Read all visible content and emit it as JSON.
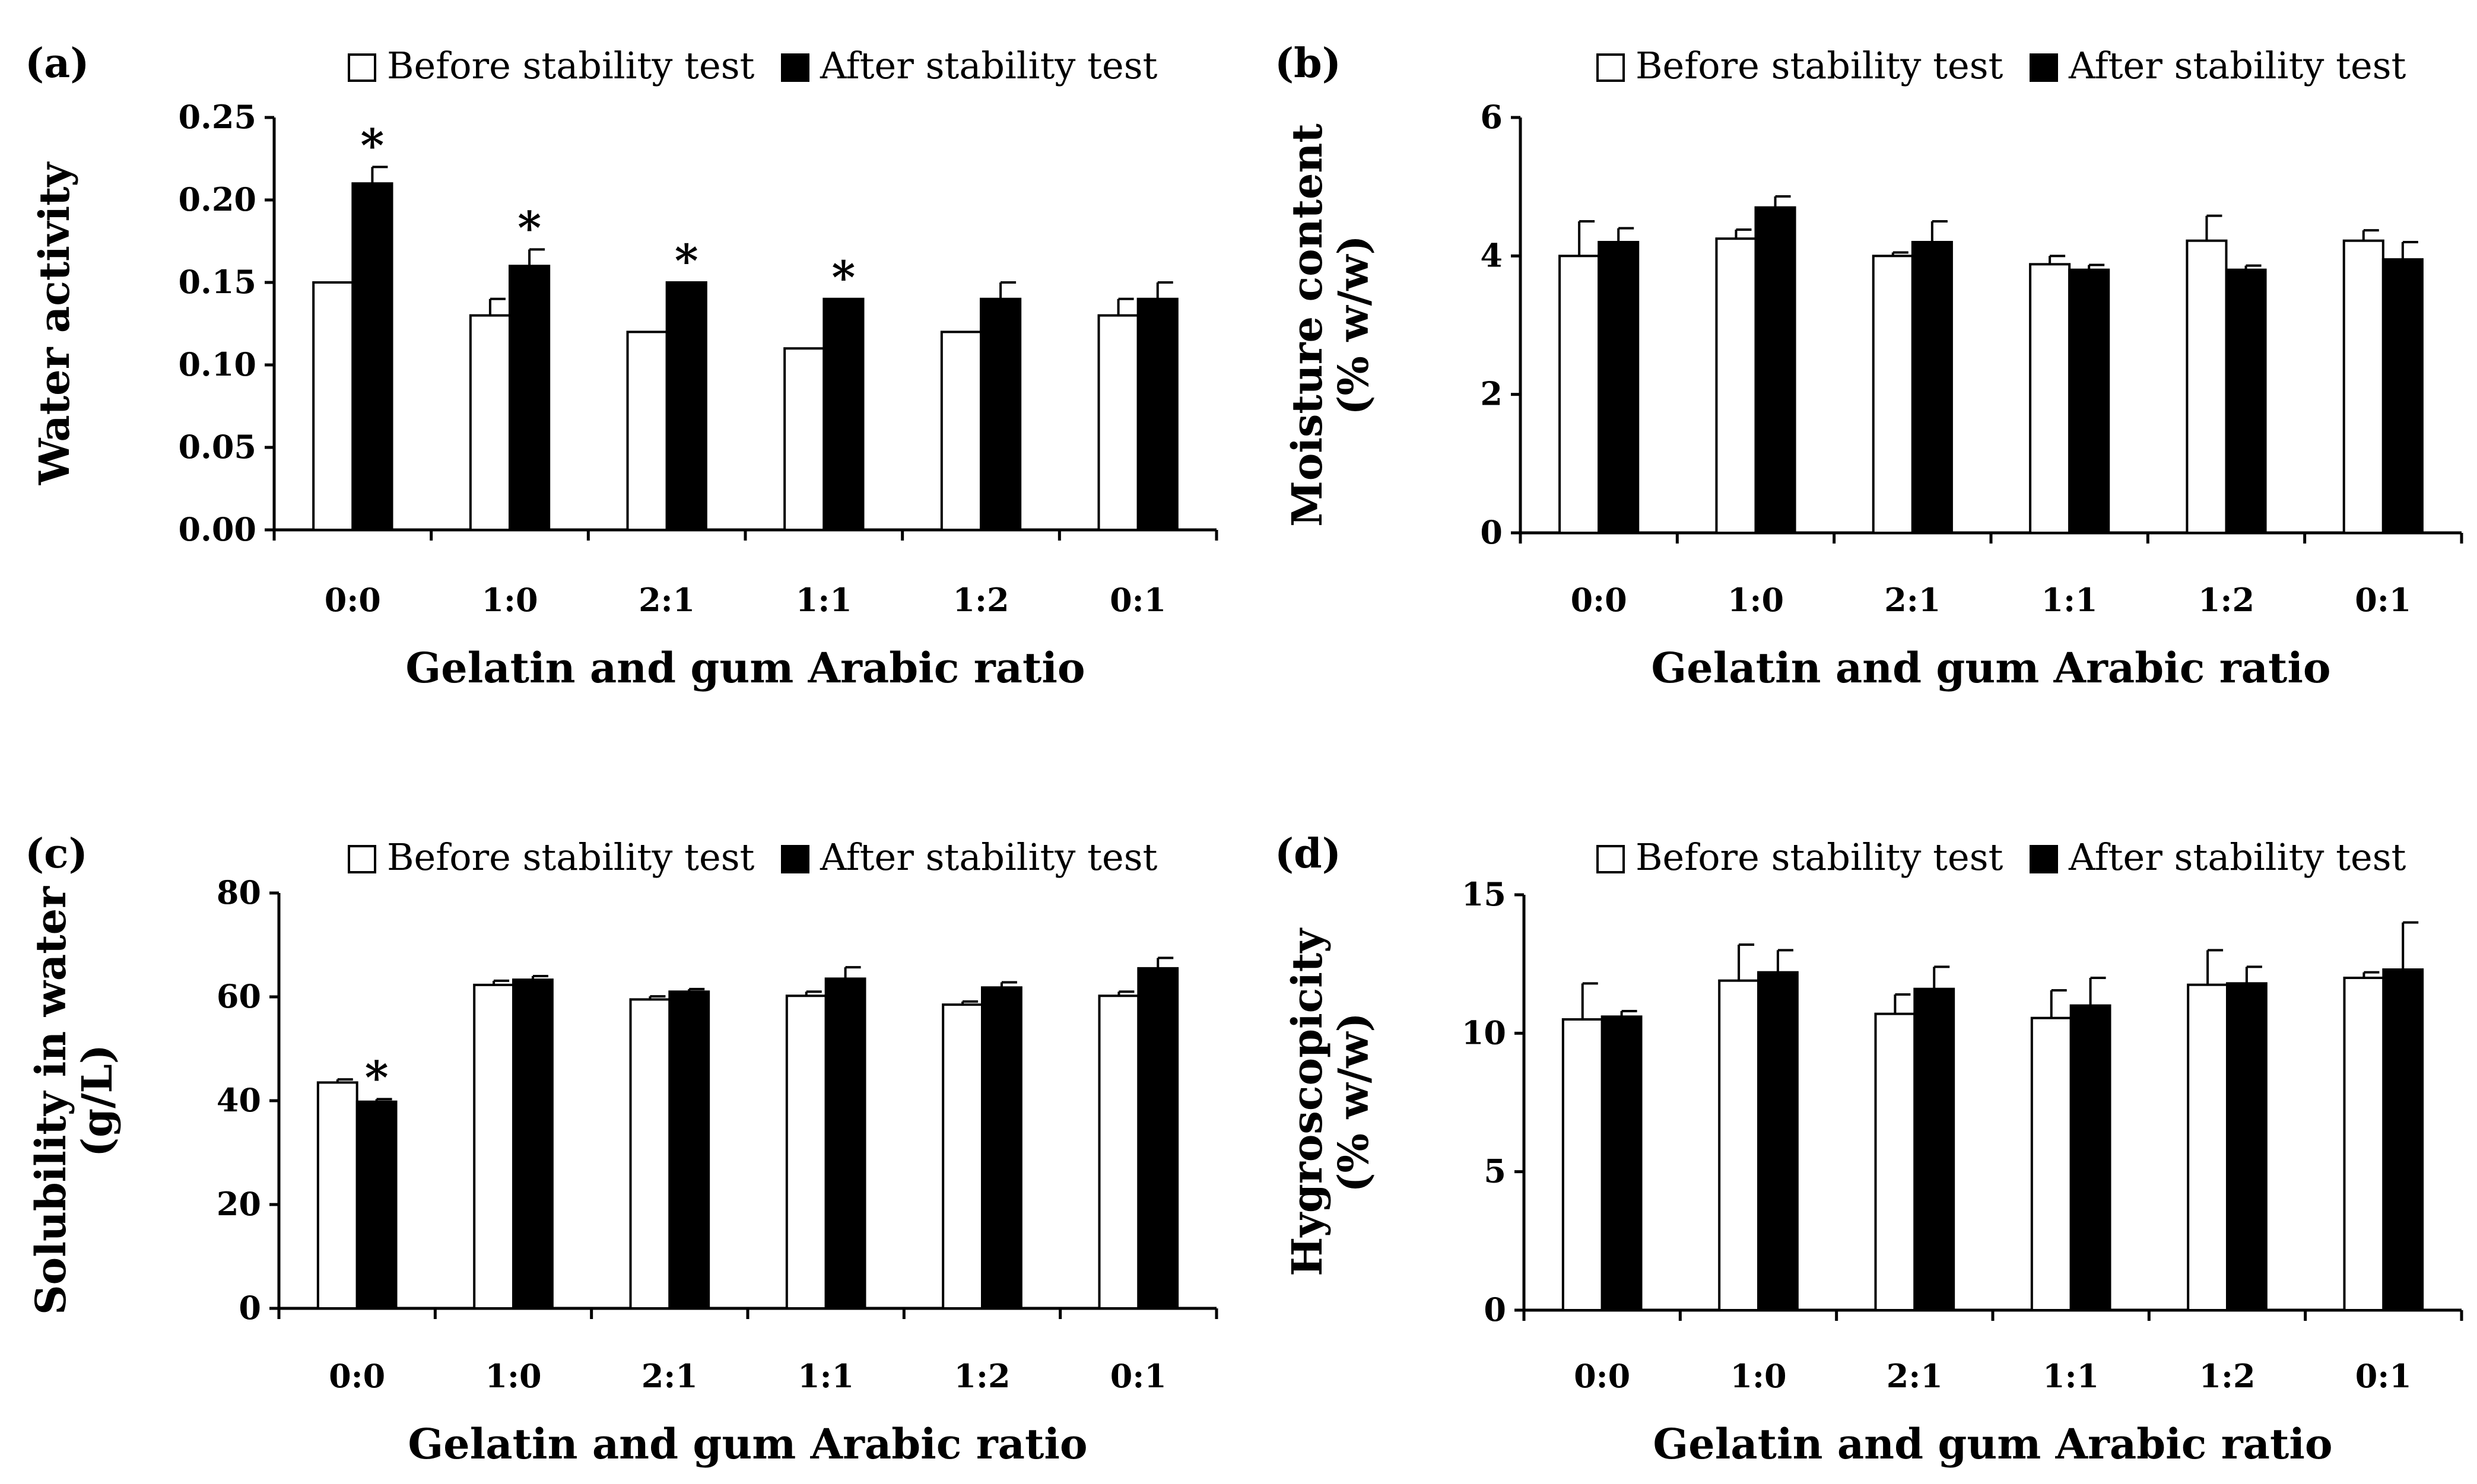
{
  "legend": {
    "before": "Before stability test",
    "after": "After stability test"
  },
  "colors": {
    "before_fill": "#ffffff",
    "after_fill": "#000000",
    "stroke": "#000000"
  },
  "chart_data": [
    {
      "panel_label": "(a)",
      "type": "bar",
      "categories": [
        "0:0",
        "1:0",
        "2:1",
        "1:1",
        "1:2",
        "0:1"
      ],
      "xlabel": "Gelatin and gum Arabic ratio",
      "ylabel": "Water activity",
      "ylabel_line2": "",
      "ylim": [
        0,
        0.25
      ],
      "yticks": [
        0,
        0.05,
        0.1,
        0.15,
        0.2,
        0.25
      ],
      "ytick_labels": [
        "0.00",
        "0.05",
        "0.10",
        "0.15",
        "0.20",
        "0.25"
      ],
      "series": [
        {
          "name": "Before stability test",
          "values": [
            0.15,
            0.13,
            0.12,
            0.11,
            0.12,
            0.13
          ],
          "errors": [
            0.0,
            0.01,
            0.0,
            0.0,
            0.0,
            0.01
          ]
        },
        {
          "name": "After stability test",
          "values": [
            0.21,
            0.16,
            0.15,
            0.14,
            0.14,
            0.14
          ],
          "errors": [
            0.01,
            0.01,
            0.0,
            0.0,
            0.01,
            0.01
          ]
        }
      ],
      "significance": [
        "*",
        "*",
        "*",
        "*",
        "",
        ""
      ],
      "legend_position": "top"
    },
    {
      "panel_label": "(b)",
      "type": "bar",
      "categories": [
        "0:0",
        "1:0",
        "2:1",
        "1:1",
        "1:2",
        "0:1"
      ],
      "xlabel": "Gelatin and gum Arabic ratio",
      "ylabel": "Moisture content",
      "ylabel_line2": "(% w/w)",
      "ylim": [
        0,
        6
      ],
      "yticks": [
        0,
        2,
        4,
        6
      ],
      "ytick_labels": [
        "0",
        "2",
        "4",
        "6"
      ],
      "series": [
        {
          "name": "Before stability test",
          "values": [
            4.0,
            4.25,
            4.0,
            3.88,
            4.22,
            4.22
          ],
          "errors": [
            0.5,
            0.13,
            0.05,
            0.12,
            0.36,
            0.15
          ]
        },
        {
          "name": "After stability test",
          "values": [
            4.2,
            4.7,
            4.2,
            3.8,
            3.8,
            3.95
          ],
          "errors": [
            0.2,
            0.16,
            0.3,
            0.07,
            0.06,
            0.25
          ]
        }
      ],
      "significance": [
        "",
        "",
        "",
        "",
        "",
        ""
      ],
      "legend_position": "top"
    },
    {
      "panel_label": "(c)",
      "type": "bar",
      "categories": [
        "0:0",
        "1:0",
        "2:1",
        "1:1",
        "1:2",
        "0:1"
      ],
      "xlabel": "Gelatin and gum Arabic ratio",
      "ylabel": "Solubility in water",
      "ylabel_line2": "(g/L)",
      "ylim": [
        0,
        80
      ],
      "yticks": [
        0,
        20,
        40,
        60,
        80
      ],
      "ytick_labels": [
        "0",
        "20",
        "40",
        "60",
        "80"
      ],
      "series": [
        {
          "name": "Before stability test",
          "values": [
            43.5,
            62.3,
            59.5,
            60.2,
            58.5,
            60.2
          ],
          "errors": [
            0.6,
            0.8,
            0.6,
            0.8,
            0.6,
            0.8
          ]
        },
        {
          "name": "After stability test",
          "values": [
            39.8,
            63.3,
            61.0,
            63.5,
            61.8,
            65.5
          ],
          "errors": [
            0.5,
            0.7,
            0.5,
            2.2,
            1.0,
            2.0
          ]
        }
      ],
      "significance": [
        "*",
        "",
        "",
        "",
        "",
        ""
      ],
      "legend_position": "top"
    },
    {
      "panel_label": "(d)",
      "type": "bar",
      "categories": [
        "0:0",
        "1:0",
        "2:1",
        "1:1",
        "1:2",
        "0:1"
      ],
      "xlabel": "Gelatin and gum Arabic ratio",
      "ylabel": "Hygroscopicity",
      "ylabel_line2": "(% w/w)",
      "ylim": [
        0,
        15
      ],
      "yticks": [
        0,
        5,
        10,
        15
      ],
      "ytick_labels": [
        "0",
        "5",
        "10",
        "15"
      ],
      "series": [
        {
          "name": "Before stability test",
          "values": [
            10.5,
            11.9,
            10.7,
            10.55,
            11.75,
            12.0
          ],
          "errors": [
            1.3,
            1.3,
            0.7,
            1.0,
            1.25,
            0.2
          ]
        },
        {
          "name": "After stability test",
          "values": [
            10.6,
            12.2,
            11.6,
            11.0,
            11.8,
            12.3
          ],
          "errors": [
            0.2,
            0.8,
            0.8,
            1.0,
            0.6,
            1.7
          ]
        }
      ],
      "significance": [
        "",
        "",
        "",
        "",
        "",
        ""
      ],
      "legend_position": "top"
    }
  ]
}
